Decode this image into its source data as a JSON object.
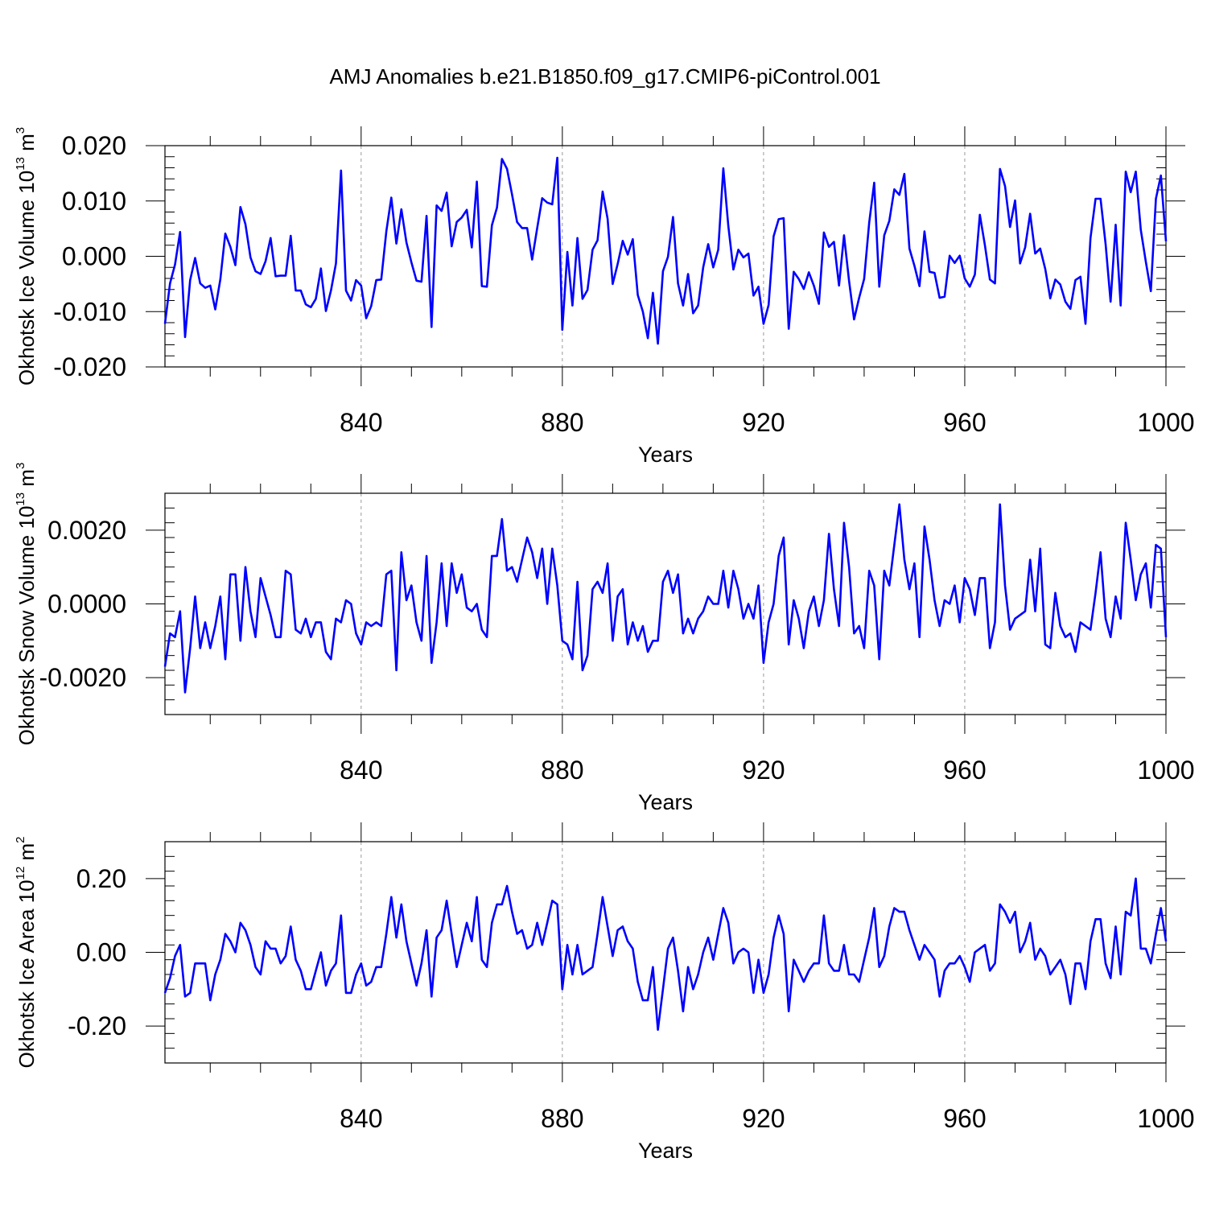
{
  "title": "AMJ Anomalies b.e21.B1850.f09_g17.CMIP6-piControl.001",
  "colors": {
    "line": "#0000ff",
    "axis": "#000000",
    "grid": "#999999"
  },
  "chart_data": [
    {
      "type": "line",
      "name": "ice-volume",
      "ylabel": {
        "text": "Okhotsk Ice Volume 10",
        "exponent": "13",
        "unit": "m",
        "unit_exponent": "3"
      },
      "xlabel": "Years",
      "xlim": [
        801,
        1000
      ],
      "ylim": [
        -0.02,
        0.02
      ],
      "xticks": [
        840,
        880,
        920,
        960,
        1000
      ],
      "xtick_labels": [
        "840",
        "880",
        "920",
        "960",
        "1000"
      ],
      "yticks": [
        -0.02,
        -0.01,
        0.0,
        0.01,
        0.02
      ],
      "ytick_labels": [
        "-0.020",
        "-0.010",
        "0.000",
        "0.010",
        "0.020"
      ],
      "x_start": 801,
      "values": [
        -0.0122,
        -0.0049,
        -0.0015,
        0.0044,
        -0.0146,
        -0.0043,
        -0.0003,
        -0.0049,
        -0.0057,
        -0.0053,
        -0.0096,
        -0.0042,
        0.0041,
        0.0017,
        -0.0016,
        0.0089,
        0.0058,
        -0.0002,
        -0.0027,
        -0.0032,
        -0.0009,
        0.0033,
        -0.0036,
        -0.0035,
        -0.0035,
        0.0037,
        -0.0062,
        -0.0062,
        -0.0087,
        -0.0092,
        -0.0077,
        -0.0022,
        -0.0099,
        -0.0062,
        -0.0013,
        0.0155,
        -0.0062,
        -0.008,
        -0.0043,
        -0.0053,
        -0.0112,
        -0.009,
        -0.0043,
        -0.0042,
        0.0045,
        0.0106,
        0.0023,
        0.0085,
        0.0025,
        -0.0011,
        -0.0044,
        -0.0046,
        0.0073,
        -0.0128,
        0.0092,
        0.0082,
        0.0115,
        0.0018,
        0.0062,
        0.007,
        0.0084,
        0.0016,
        0.0135,
        -0.0054,
        -0.0055,
        0.0056,
        0.0088,
        0.0176,
        0.0158,
        0.0112,
        0.0062,
        0.0051,
        0.0051,
        -0.0006,
        0.0051,
        0.0105,
        0.0097,
        0.0094,
        0.0178,
        -0.0133,
        0.0008,
        -0.0089,
        0.0033,
        -0.0077,
        -0.0061,
        0.0012,
        0.0029,
        0.0117,
        0.0068,
        -0.005,
        -0.0014,
        0.0028,
        0.0003,
        0.0031,
        -0.007,
        -0.01,
        -0.0148,
        -0.0066,
        -0.0158,
        -0.0027,
        -0.0001,
        0.0071,
        -0.0049,
        -0.0089,
        -0.0032,
        -0.0103,
        -0.0089,
        -0.002,
        0.0022,
        -0.002,
        0.0012,
        0.0159,
        0.0055,
        -0.0024,
        0.0012,
        -0.0002,
        0.0005,
        -0.0071,
        -0.0055,
        -0.0122,
        -0.0088,
        0.0036,
        0.0067,
        0.0069,
        -0.0131,
        -0.0028,
        -0.0041,
        -0.0059,
        -0.0029,
        -0.0053,
        -0.0086,
        0.0043,
        0.0017,
        0.0026,
        -0.0053,
        0.0038,
        -0.0045,
        -0.0114,
        -0.0075,
        -0.0041,
        0.0061,
        0.0133,
        -0.0055,
        0.0038,
        0.0064,
        0.0121,
        0.0111,
        0.0149,
        0.0014,
        -0.0017,
        -0.0054,
        0.0045,
        -0.0028,
        -0.003,
        -0.0075,
        -0.0073,
        0.0001,
        -0.0012,
        0.0001,
        -0.004,
        -0.0055,
        -0.0033,
        0.0075,
        0.002,
        -0.0042,
        -0.0049,
        0.0158,
        0.0127,
        0.0053,
        0.0101,
        -0.0013,
        0.0016,
        0.0077,
        0.0005,
        0.0014,
        -0.0023,
        -0.0076,
        -0.0042,
        -0.0051,
        -0.0082,
        -0.0095,
        -0.0043,
        -0.0037,
        -0.0122,
        0.0033,
        0.0104,
        0.0104,
        0.0022,
        -0.0082,
        0.0057,
        -0.0089,
        0.0153,
        0.0116,
        0.0153,
        0.0048,
        -0.001,
        -0.0063,
        0.0104,
        0.0146,
        0.0027
      ]
    },
    {
      "type": "line",
      "name": "snow-volume",
      "ylabel": {
        "text": "Okhotsk Snow Volume 10",
        "exponent": "13",
        "unit": "m",
        "unit_exponent": "3"
      },
      "xlabel": "Years",
      "xlim": [
        801,
        1000
      ],
      "ylim": [
        -0.003,
        0.003
      ],
      "xticks": [
        840,
        880,
        920,
        960,
        1000
      ],
      "xtick_labels": [
        "840",
        "880",
        "920",
        "960",
        "1000"
      ],
      "yticks": [
        -0.002,
        0.0,
        0.002
      ],
      "ytick_labels": [
        "-0.0020",
        "0.0000",
        "0.0020"
      ],
      "x_start": 801,
      "values": [
        -0.0017,
        -0.0008,
        -0.0009,
        -0.0002,
        -0.0024,
        -0.0012,
        0.0002,
        -0.0012,
        -0.0005,
        -0.0012,
        -0.0006,
        0.0002,
        -0.0015,
        0.0008,
        0.0008,
        -0.001,
        0.001,
        -0.0002,
        -0.0009,
        0.0007,
        0.0002,
        -0.0003,
        -0.0009,
        -0.0009,
        0.0009,
        0.0008,
        -0.0007,
        -0.0008,
        -0.0004,
        -0.0009,
        -0.0005,
        -0.0005,
        -0.0013,
        -0.0015,
        -0.0004,
        -0.0005,
        0.0001,
        0.0,
        -0.0008,
        -0.0011,
        -0.0005,
        -0.0006,
        -0.0005,
        -0.0006,
        0.0008,
        0.0009,
        -0.0018,
        0.0014,
        0.0001,
        0.0005,
        -0.0005,
        -0.001,
        0.0013,
        -0.0016,
        -0.0005,
        0.0011,
        -0.0006,
        0.0011,
        0.0003,
        0.0008,
        -0.0001,
        -0.0002,
        0.0,
        -0.0007,
        -0.0009,
        0.0013,
        0.0013,
        0.0023,
        0.0009,
        0.001,
        0.0006,
        0.0012,
        0.0018,
        0.0014,
        0.0007,
        0.0015,
        0.0,
        0.0015,
        0.0005,
        -0.001,
        -0.0011,
        -0.0015,
        0.0006,
        -0.0018,
        -0.0014,
        0.0004,
        0.0006,
        0.0003,
        0.0011,
        -0.001,
        0.0002,
        0.0004,
        -0.0011,
        -0.0005,
        -0.001,
        -0.0006,
        -0.0013,
        -0.001,
        -0.001,
        0.0006,
        0.0009,
        0.0003,
        0.0008,
        -0.0008,
        -0.0004,
        -0.0008,
        -0.0004,
        -0.0002,
        0.0002,
        0.0,
        0.0,
        0.0009,
        -0.0001,
        0.0009,
        0.0004,
        -0.0004,
        0.0,
        -0.0004,
        0.0005,
        -0.0016,
        -0.0005,
        0.0,
        0.0013,
        0.0018,
        -0.0011,
        0.0001,
        -0.0004,
        -0.0012,
        -0.0002,
        0.0002,
        -0.0006,
        0.0001,
        0.0019,
        0.0004,
        -0.0006,
        0.0022,
        0.001,
        -0.0008,
        -0.0006,
        -0.0012,
        0.0009,
        0.0005,
        -0.0015,
        0.0009,
        0.0005,
        0.0016,
        0.0027,
        0.0012,
        0.0004,
        0.0011,
        -0.0009,
        0.0021,
        0.0012,
        0.0001,
        -0.0006,
        0.0001,
        0.0,
        0.0005,
        -0.0005,
        0.0007,
        0.0004,
        -0.0003,
        0.0007,
        0.0007,
        -0.0012,
        -0.0005,
        0.0027,
        0.0005,
        -0.0007,
        -0.0004,
        -0.0003,
        -0.0002,
        0.0012,
        -0.0002,
        0.0015,
        -0.0011,
        -0.0012,
        0.0003,
        -0.0006,
        -0.0009,
        -0.0008,
        -0.0013,
        -0.0005,
        -0.0006,
        -0.0007,
        0.0003,
        0.0014,
        -0.0004,
        -0.0009,
        0.0002,
        -0.0004,
        0.0022,
        0.0012,
        0.0001,
        0.0008,
        0.0011,
        -0.0001,
        0.0016,
        0.0015,
        -0.0009
      ]
    },
    {
      "type": "line",
      "name": "ice-area",
      "ylabel": {
        "text": "Okhotsk Ice Area 10",
        "exponent": "12",
        "unit": "m",
        "unit_exponent": "2"
      },
      "xlabel": "Years",
      "xlim": [
        801,
        1000
      ],
      "ylim": [
        -0.3,
        0.3
      ],
      "xticks": [
        840,
        880,
        920,
        960,
        1000
      ],
      "xtick_labels": [
        "840",
        "880",
        "920",
        "960",
        "1000"
      ],
      "yticks": [
        -0.2,
        0.0,
        0.2
      ],
      "ytick_labels": [
        "-0.20",
        "0.00",
        "0.20"
      ],
      "x_start": 801,
      "values": [
        -0.11,
        -0.07,
        -0.01,
        0.02,
        -0.12,
        -0.11,
        -0.03,
        -0.03,
        -0.03,
        -0.13,
        -0.06,
        -0.02,
        0.05,
        0.03,
        0.0,
        0.08,
        0.06,
        0.02,
        -0.04,
        -0.06,
        0.03,
        0.01,
        0.01,
        -0.03,
        -0.01,
        0.07,
        -0.02,
        -0.05,
        -0.1,
        -0.1,
        -0.05,
        0.0,
        -0.09,
        -0.05,
        -0.03,
        0.1,
        -0.11,
        -0.11,
        -0.06,
        -0.03,
        -0.09,
        -0.08,
        -0.04,
        -0.04,
        0.05,
        0.15,
        0.04,
        0.13,
        0.03,
        -0.03,
        -0.09,
        -0.03,
        0.06,
        -0.12,
        0.04,
        0.06,
        0.14,
        0.05,
        -0.04,
        0.02,
        0.08,
        0.03,
        0.15,
        -0.02,
        -0.04,
        0.08,
        0.13,
        0.13,
        0.18,
        0.11,
        0.05,
        0.06,
        0.01,
        0.02,
        0.08,
        0.02,
        0.08,
        0.14,
        0.13,
        -0.1,
        0.02,
        -0.06,
        0.02,
        -0.06,
        -0.05,
        -0.04,
        0.05,
        0.15,
        0.07,
        -0.01,
        0.06,
        0.07,
        0.03,
        0.01,
        -0.08,
        -0.13,
        -0.13,
        -0.04,
        -0.21,
        -0.1,
        0.01,
        0.04,
        -0.05,
        -0.16,
        -0.04,
        -0.1,
        -0.06,
        0.0,
        0.04,
        -0.02,
        0.05,
        0.12,
        0.08,
        -0.03,
        0.0,
        0.01,
        0.0,
        -0.11,
        -0.02,
        -0.11,
        -0.06,
        0.04,
        0.1,
        0.05,
        -0.16,
        -0.02,
        -0.05,
        -0.08,
        -0.05,
        -0.03,
        -0.03,
        0.1,
        -0.03,
        -0.05,
        -0.05,
        0.02,
        -0.06,
        -0.06,
        -0.08,
        -0.02,
        0.04,
        0.12,
        -0.04,
        -0.01,
        0.07,
        0.12,
        0.11,
        0.11,
        0.06,
        0.02,
        -0.02,
        0.02,
        0.0,
        -0.02,
        -0.12,
        -0.05,
        -0.03,
        -0.03,
        -0.01,
        -0.04,
        -0.08,
        0.0,
        0.01,
        0.02,
        -0.05,
        -0.03,
        0.13,
        0.11,
        0.08,
        0.11,
        0.0,
        0.03,
        0.08,
        -0.02,
        0.01,
        -0.01,
        -0.06,
        -0.04,
        -0.02,
        -0.06,
        -0.14,
        -0.03,
        -0.03,
        -0.1,
        0.03,
        0.09,
        0.09,
        -0.03,
        -0.07,
        0.07,
        -0.06,
        0.11,
        0.1,
        0.2,
        0.01,
        0.01,
        -0.03,
        0.05,
        0.12,
        0.03
      ]
    }
  ]
}
